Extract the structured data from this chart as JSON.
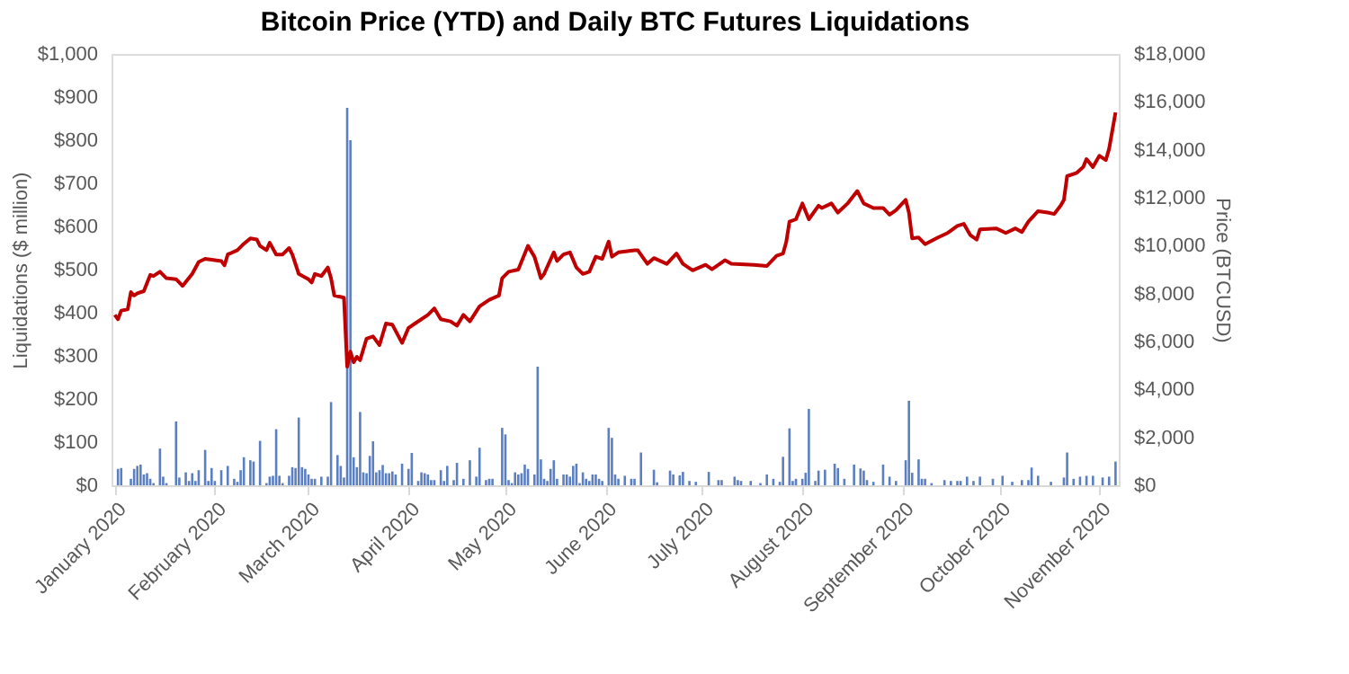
{
  "chart_data": {
    "type": "bar",
    "title": "Bitcoin Price (YTD) and Daily BTC Futures Liquidations",
    "ylabel": "Liquidations ($ million)",
    "y2label": "Price (BTCUSD)",
    "grid": false,
    "x": [
      "2020-01-02",
      "2020-01-03",
      "2020-01-06",
      "2020-01-07",
      "2020-01-08",
      "2020-01-09",
      "2020-01-10",
      "2020-01-11",
      "2020-01-12",
      "2020-01-13",
      "2020-01-15",
      "2020-01-16",
      "2020-01-17",
      "2020-01-20",
      "2020-01-21",
      "2020-01-23",
      "2020-01-24",
      "2020-01-25",
      "2020-01-26",
      "2020-01-27",
      "2020-01-29",
      "2020-01-30",
      "2020-01-31",
      "2020-02-01",
      "2020-02-03",
      "2020-02-05",
      "2020-02-07",
      "2020-02-08",
      "2020-02-09",
      "2020-02-10",
      "2020-02-12",
      "2020-02-13",
      "2020-02-15",
      "2020-02-17",
      "2020-02-18",
      "2020-02-19",
      "2020-02-20",
      "2020-02-21",
      "2020-02-22",
      "2020-02-24",
      "2020-02-25",
      "2020-02-26",
      "2020-02-27",
      "2020-02-28",
      "2020-02-29",
      "2020-03-01",
      "2020-03-02",
      "2020-03-03",
      "2020-03-05",
      "2020-03-07",
      "2020-03-08",
      "2020-03-10",
      "2020-03-11",
      "2020-03-12",
      "2020-03-13",
      "2020-03-14",
      "2020-03-15",
      "2020-03-16",
      "2020-03-17",
      "2020-03-18",
      "2020-03-19",
      "2020-03-20",
      "2020-03-21",
      "2020-03-22",
      "2020-03-23",
      "2020-03-24",
      "2020-03-25",
      "2020-03-26",
      "2020-03-27",
      "2020-03-28",
      "2020-03-30",
      "2020-04-01",
      "2020-04-02",
      "2020-04-04",
      "2020-04-05",
      "2020-04-06",
      "2020-04-07",
      "2020-04-08",
      "2020-04-09",
      "2020-04-11",
      "2020-04-12",
      "2020-04-13",
      "2020-04-15",
      "2020-04-16",
      "2020-04-18",
      "2020-04-20",
      "2020-04-22",
      "2020-04-23",
      "2020-04-25",
      "2020-04-26",
      "2020-04-27",
      "2020-04-30",
      "2020-05-01",
      "2020-05-02",
      "2020-05-03",
      "2020-05-04",
      "2020-05-05",
      "2020-05-06",
      "2020-05-07",
      "2020-05-08",
      "2020-05-10",
      "2020-05-11",
      "2020-05-12",
      "2020-05-13",
      "2020-05-14",
      "2020-05-15",
      "2020-05-16",
      "2020-05-17",
      "2020-05-19",
      "2020-05-20",
      "2020-05-21",
      "2020-05-22",
      "2020-05-23",
      "2020-05-24",
      "2020-05-25",
      "2020-05-26",
      "2020-05-27",
      "2020-05-28",
      "2020-05-29",
      "2020-05-30",
      "2020-05-31",
      "2020-06-02",
      "2020-06-03",
      "2020-06-04",
      "2020-06-05",
      "2020-06-07",
      "2020-06-09",
      "2020-06-10",
      "2020-06-12",
      "2020-06-16",
      "2020-06-17",
      "2020-06-21",
      "2020-06-22",
      "2020-06-24",
      "2020-06-25",
      "2020-06-27",
      "2020-06-29",
      "2020-07-03",
      "2020-07-06",
      "2020-07-07",
      "2020-07-11",
      "2020-07-12",
      "2020-07-13",
      "2020-07-16",
      "2020-07-19",
      "2020-07-21",
      "2020-07-23",
      "2020-07-25",
      "2020-07-26",
      "2020-07-28",
      "2020-07-29",
      "2020-07-30",
      "2020-08-01",
      "2020-08-02",
      "2020-08-03",
      "2020-08-05",
      "2020-08-06",
      "2020-08-08",
      "2020-08-11",
      "2020-08-12",
      "2020-08-14",
      "2020-08-17",
      "2020-08-19",
      "2020-08-20",
      "2020-08-21",
      "2020-08-23",
      "2020-08-26",
      "2020-08-28",
      "2020-08-30",
      "2020-09-02",
      "2020-09-03",
      "2020-09-04",
      "2020-09-06",
      "2020-09-07",
      "2020-09-08",
      "2020-09-10",
      "2020-09-14",
      "2020-09-16",
      "2020-09-18",
      "2020-09-19",
      "2020-09-21",
      "2020-09-23",
      "2020-09-25",
      "2020-09-29",
      "2020-10-02",
      "2020-10-05",
      "2020-10-08",
      "2020-10-10",
      "2020-10-11",
      "2020-10-13",
      "2020-10-17",
      "2020-10-21",
      "2020-10-22",
      "2020-10-24",
      "2020-10-26",
      "2020-10-28",
      "2020-10-30",
      "2020-11-02",
      "2020-11-04",
      "2020-11-06"
    ],
    "series": [
      {
        "color": "#5b7fc0",
        "values": [
          38,
          40,
          15,
          38,
          45,
          48,
          25,
          28,
          15,
          5,
          85,
          20,
          5,
          148,
          18,
          30,
          10,
          28,
          10,
          35,
          82,
          10,
          40,
          10,
          35,
          45,
          15,
          8,
          35,
          65,
          58,
          55,
          103,
          5,
          20,
          22,
          130,
          22,
          5,
          22,
          42,
          40,
          157,
          42,
          38,
          25,
          15,
          15,
          20,
          20,
          193,
          70,
          45,
          18,
          875,
          800,
          65,
          42,
          170,
          30,
          28,
          68,
          102,
          30,
          35,
          47,
          28,
          28,
          32,
          25,
          50,
          38,
          75,
          10,
          30,
          28,
          25,
          12,
          12,
          35,
          10,
          45,
          12,
          52,
          15,
          58,
          20,
          87,
          12,
          15,
          15,
          133,
          118,
          12,
          5,
          30,
          25,
          28,
          48,
          38,
          25,
          275,
          60,
          15,
          10,
          38,
          58,
          15,
          25,
          25,
          20,
          45,
          50,
          5,
          30,
          15,
          10,
          25,
          25,
          15,
          10,
          133,
          110,
          25,
          15,
          22,
          15,
          15,
          76,
          36,
          7,
          34,
          25,
          23,
          31,
          10,
          8,
          31,
          12,
          12,
          20,
          12,
          10,
          10,
          5,
          25,
          15,
          8,
          66,
          132,
          10,
          15,
          15,
          29,
          177,
          10,
          34,
          36,
          50,
          40,
          15,
          48,
          39,
          34,
          12,
          8,
          48,
          20,
          10,
          58,
          196,
          29,
          60,
          15,
          15,
          5,
          12,
          10,
          10,
          10,
          20,
          10,
          20,
          15,
          22,
          8,
          12,
          12,
          41,
          22,
          8,
          18,
          76,
          15,
          20,
          22,
          22,
          18,
          20,
          55
        ]
      },
      {
        "type": "line",
        "axis": "y2",
        "color": "#c00000",
        "x": [
          "2020-01-01",
          "2020-01-02",
          "2020-01-03",
          "2020-01-05",
          "2020-01-06",
          "2020-01-07",
          "2020-01-08",
          "2020-01-10",
          "2020-01-12",
          "2020-01-13",
          "2020-01-15",
          "2020-01-17",
          "2020-01-20",
          "2020-01-22",
          "2020-01-25",
          "2020-01-27",
          "2020-01-29",
          "2020-02-03",
          "2020-02-04",
          "2020-02-05",
          "2020-02-08",
          "2020-02-10",
          "2020-02-12",
          "2020-02-14",
          "2020-02-15",
          "2020-02-17",
          "2020-02-18",
          "2020-02-20",
          "2020-02-22",
          "2020-02-24",
          "2020-02-25",
          "2020-02-27",
          "2020-03-01",
          "2020-03-02",
          "2020-03-03",
          "2020-03-05",
          "2020-03-07",
          "2020-03-08",
          "2020-03-09",
          "2020-03-12",
          "2020-03-13",
          "2020-03-14",
          "2020-03-15",
          "2020-03-16",
          "2020-03-17",
          "2020-03-19",
          "2020-03-21",
          "2020-03-23",
          "2020-03-25",
          "2020-03-27",
          "2020-03-30",
          "2020-04-01",
          "2020-04-03",
          "2020-04-07",
          "2020-04-09",
          "2020-04-11",
          "2020-04-14",
          "2020-04-16",
          "2020-04-18",
          "2020-04-20",
          "2020-04-23",
          "2020-04-26",
          "2020-04-29",
          "2020-04-30",
          "2020-05-02",
          "2020-05-05",
          "2020-05-08",
          "2020-05-10",
          "2020-05-12",
          "2020-05-13",
          "2020-05-16",
          "2020-05-17",
          "2020-05-19",
          "2020-05-21",
          "2020-05-23",
          "2020-05-25",
          "2020-05-27",
          "2020-05-29",
          "2020-05-31",
          "2020-06-02",
          "2020-06-03",
          "2020-06-05",
          "2020-06-10",
          "2020-06-11",
          "2020-06-14",
          "2020-06-16",
          "2020-06-20",
          "2020-06-23",
          "2020-06-25",
          "2020-06-28",
          "2020-07-02",
          "2020-07-04",
          "2020-07-08",
          "2020-07-10",
          "2020-07-17",
          "2020-07-21",
          "2020-07-24",
          "2020-07-26",
          "2020-07-27",
          "2020-07-28",
          "2020-07-30",
          "2020-08-01",
          "2020-08-03",
          "2020-08-06",
          "2020-08-07",
          "2020-08-10",
          "2020-08-12",
          "2020-08-15",
          "2020-08-18",
          "2020-08-20",
          "2020-08-23",
          "2020-08-26",
          "2020-08-28",
          "2020-08-30",
          "2020-09-02",
          "2020-09-03",
          "2020-09-04",
          "2020-09-06",
          "2020-09-08",
          "2020-09-12",
          "2020-09-15",
          "2020-09-18",
          "2020-09-20",
          "2020-09-22",
          "2020-09-24",
          "2020-09-25",
          "2020-09-30",
          "2020-10-03",
          "2020-10-06",
          "2020-10-08",
          "2020-10-10",
          "2020-10-13",
          "2020-10-16",
          "2020-10-18",
          "2020-10-20",
          "2020-10-21",
          "2020-10-22",
          "2020-10-25",
          "2020-10-27",
          "2020-10-28",
          "2020-10-30",
          "2020-11-01",
          "2020-11-03",
          "2020-11-04",
          "2020-11-06"
        ],
        "values": [
          7110,
          6930,
          7290,
          7340,
          8060,
          7920,
          8010,
          8100,
          8780,
          8730,
          8910,
          8640,
          8600,
          8320,
          8820,
          9320,
          9450,
          9360,
          9180,
          9630,
          9810,
          10080,
          10300,
          10260,
          9990,
          9810,
          10120,
          9630,
          9630,
          9900,
          9630,
          8820,
          8600,
          8460,
          8820,
          8730,
          9090,
          8640,
          7920,
          7830,
          4950,
          5580,
          5130,
          5360,
          5220,
          6120,
          6210,
          5850,
          6750,
          6700,
          5940,
          6570,
          6750,
          7110,
          7380,
          6930,
          6840,
          6660,
          7110,
          6840,
          7470,
          7740,
          7920,
          8640,
          8910,
          9000,
          9990,
          9540,
          8640,
          8820,
          9720,
          9360,
          9630,
          9720,
          9090,
          8820,
          8910,
          9540,
          9450,
          10170,
          9540,
          9720,
          9810,
          9810,
          9240,
          9480,
          9240,
          9670,
          9240,
          8970,
          9200,
          9010,
          9390,
          9240,
          9200,
          9150,
          9580,
          9670,
          10150,
          11000,
          11100,
          11760,
          11100,
          11670,
          11570,
          11760,
          11380,
          11760,
          12280,
          11760,
          11570,
          11570,
          11290,
          11480,
          11910,
          11380,
          10300,
          10340,
          10060,
          10340,
          10530,
          10820,
          10910,
          10440,
          10250,
          10680,
          10720,
          10530,
          10720,
          10570,
          11000,
          11440,
          11380,
          11320,
          11670,
          11910,
          12900,
          13040,
          13280,
          13610,
          13280,
          13750,
          13570,
          14040,
          15560
        ]
      }
    ],
    "xlim": [
      "2019-12-31",
      "2020-11-07"
    ],
    "xticks": [
      {
        "value": "2020-01-01",
        "label": "January 2020"
      },
      {
        "value": "2020-02-01",
        "label": "February 2020"
      },
      {
        "value": "2020-03-01",
        "label": "March 2020"
      },
      {
        "value": "2020-04-01",
        "label": "April 2020"
      },
      {
        "value": "2020-05-01",
        "label": "May 2020"
      },
      {
        "value": "2020-06-01",
        "label": "June 2020"
      },
      {
        "value": "2020-07-01",
        "label": "July 2020"
      },
      {
        "value": "2020-08-01",
        "label": "August 2020"
      },
      {
        "value": "2020-09-01",
        "label": "September 2020"
      },
      {
        "value": "2020-10-01",
        "label": "October 2020"
      },
      {
        "value": "2020-11-01",
        "label": "November 2020"
      }
    ],
    "ylim": [
      0,
      1000
    ],
    "yticks": [
      {
        "value": 0,
        "label": "$0"
      },
      {
        "value": 100,
        "label": "$100"
      },
      {
        "value": 200,
        "label": "$200"
      },
      {
        "value": 300,
        "label": "$300"
      },
      {
        "value": 400,
        "label": "$400"
      },
      {
        "value": 500,
        "label": "$500"
      },
      {
        "value": 600,
        "label": "$600"
      },
      {
        "value": 700,
        "label": "$700"
      },
      {
        "value": 800,
        "label": "$800"
      },
      {
        "value": 900,
        "label": "$900"
      },
      {
        "value": 1000,
        "label": "$1,000"
      }
    ],
    "y2lim": [
      0,
      18000
    ],
    "y2ticks": [
      {
        "value": 0,
        "label": "$0"
      },
      {
        "value": 2000,
        "label": "$2,000"
      },
      {
        "value": 4000,
        "label": "$4,000"
      },
      {
        "value": 6000,
        "label": "$6,000"
      },
      {
        "value": 8000,
        "label": "$8,000"
      },
      {
        "value": 10000,
        "label": "$10,000"
      },
      {
        "value": 12000,
        "label": "$12,000"
      },
      {
        "value": 14000,
        "label": "$14,000"
      },
      {
        "value": 16000,
        "label": "$16,000"
      },
      {
        "value": 18000,
        "label": "$18,000"
      }
    ]
  }
}
